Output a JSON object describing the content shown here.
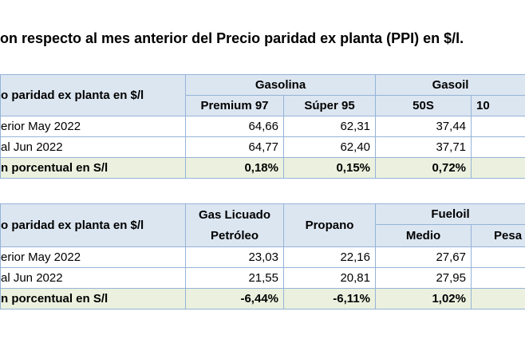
{
  "title": "on respecto al mes anterior del Precio paridad ex planta (PPI) en $/l.",
  "table1": {
    "header_label": "o paridad ex planta en $/l",
    "groups": [
      "Gasolina",
      "Gasoil"
    ],
    "columns": [
      "Premium 97",
      "Súper 95",
      "50S",
      "10"
    ],
    "rows": [
      {
        "label": "erior May 2022",
        "values": [
          "64,66",
          "62,31",
          "37,44"
        ]
      },
      {
        "label": "al Jun 2022",
        "values": [
          "64,77",
          "62,40",
          "37,71"
        ]
      }
    ],
    "pct_row": {
      "label": "n porcentual en S/l",
      "values": [
        "0,18%",
        "0,15%",
        "0,72%"
      ]
    }
  },
  "table2": {
    "header_label": "o paridad ex planta en $/l",
    "col1": "Gas Licuado Petróleo",
    "col2": "Propano",
    "group": "Fueloil",
    "columns": [
      "Medio",
      "Pesa"
    ],
    "rows": [
      {
        "label": "erior May 2022",
        "values": [
          "23,03",
          "22,16",
          "27,67"
        ]
      },
      {
        "label": "al Jun 2022",
        "values": [
          "21,55",
          "20,81",
          "27,95"
        ]
      }
    ],
    "pct_row": {
      "label": "n porcentual en S/l",
      "values": [
        "-6,44%",
        "-6,11%",
        "1,02%"
      ]
    }
  }
}
